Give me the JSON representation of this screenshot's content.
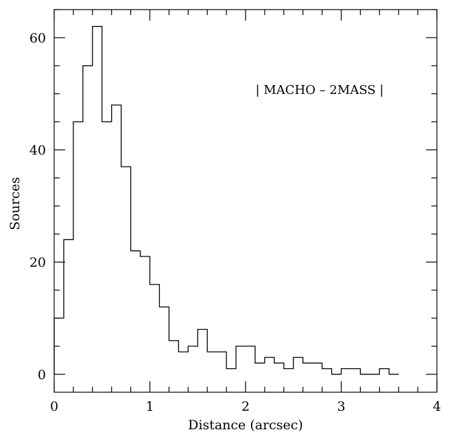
{
  "chart_data": {
    "type": "bar",
    "style": "step histogram",
    "bin_width": 0.1,
    "x": [
      0.0,
      0.1,
      0.2,
      0.3,
      0.4,
      0.5,
      0.6,
      0.7,
      0.8,
      0.9,
      1.0,
      1.1,
      1.2,
      1.3,
      1.4,
      1.5,
      1.6,
      1.7,
      1.8,
      1.9,
      2.0,
      2.1,
      2.2,
      2.3,
      2.4,
      2.5,
      2.6,
      2.7,
      2.8,
      2.9,
      3.0,
      3.1,
      3.2,
      3.3,
      3.4,
      3.5
    ],
    "values": [
      10,
      24,
      45,
      55,
      62,
      45,
      48,
      37,
      22,
      21,
      16,
      12,
      6,
      4,
      5,
      8,
      4,
      4,
      1,
      5,
      5,
      2,
      3,
      2,
      1,
      3,
      2,
      2,
      1,
      0,
      1,
      1,
      0,
      0,
      1,
      0
    ],
    "xlabel": "Distance (arcsec)",
    "ylabel": "Sources",
    "xlim": [
      0,
      4
    ],
    "ylim": [
      -3.2,
      65
    ],
    "xticks": [
      "0",
      "1",
      "2",
      "3",
      "4"
    ],
    "xtick_values": [
      0,
      1,
      2,
      3,
      4
    ],
    "yticks": [
      "0",
      "20",
      "40",
      "60"
    ],
    "ytick_values": [
      0,
      20,
      40,
      60
    ],
    "annotation": "| MACHO – 2MASS |",
    "grid": false,
    "color": "#000000"
  }
}
